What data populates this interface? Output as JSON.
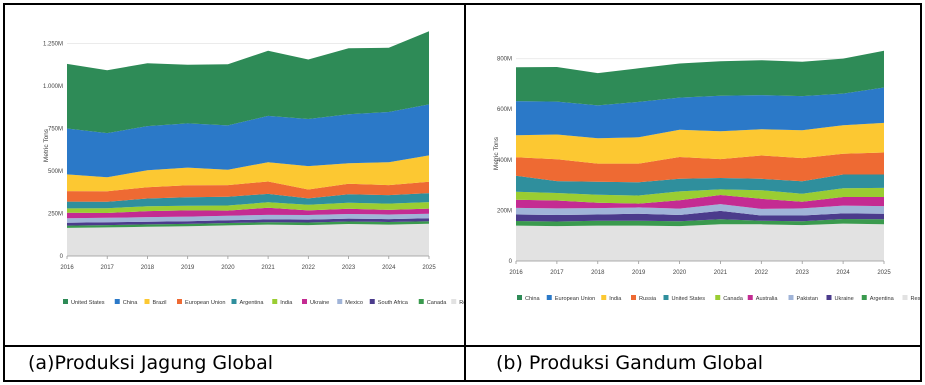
{
  "captions": {
    "a": "(a)Produksi Jagung Global",
    "b": "(b) Produksi Gandum Global"
  },
  "chart_data": [
    {
      "type": "area",
      "stacked": true,
      "title": "",
      "xlabel": "",
      "ylabel": "Metric Tons",
      "x": [
        "2016",
        "2017",
        "2018",
        "2019",
        "2020",
        "2021",
        "2022",
        "2023",
        "2024",
        "2025"
      ],
      "ylim": [
        0,
        1300
      ],
      "yticks": [
        0,
        250,
        500,
        750,
        1000,
        1250
      ],
      "ytick_labels": [
        "0",
        "250M",
        "500M",
        "750M",
        "1.000M",
        "1.250M"
      ],
      "grid": true,
      "legend_position": "bottom",
      "series": [
        {
          "name": "Rest of World",
          "color": "#e2e2e2",
          "values": [
            165,
            168,
            172,
            175,
            180,
            185,
            182,
            188,
            185,
            190
          ]
        },
        {
          "name": "Canada",
          "color": "#3a9a4e",
          "values": [
            14,
            14,
            14,
            14,
            14,
            14,
            15,
            15,
            15,
            15
          ]
        },
        {
          "name": "South Africa",
          "color": "#4b3b8c",
          "values": [
            16,
            16,
            16,
            16,
            16,
            16,
            17,
            17,
            17,
            17
          ]
        },
        {
          "name": "Mexico",
          "color": "#a0b4d8",
          "values": [
            27,
            27,
            27,
            27,
            27,
            27,
            27,
            27,
            27,
            27
          ]
        },
        {
          "name": "Ukraine",
          "color": "#c42b92",
          "values": [
            32,
            28,
            35,
            36,
            30,
            42,
            27,
            31,
            27,
            30
          ]
        },
        {
          "name": "India",
          "color": "#9acd32",
          "values": [
            26,
            28,
            29,
            28,
            30,
            32,
            34,
            35,
            37,
            38
          ]
        },
        {
          "name": "Argentina",
          "color": "#2f8f9d",
          "values": [
            40,
            38,
            45,
            50,
            52,
            49,
            37,
            50,
            50,
            53
          ]
        },
        {
          "name": "European Union",
          "color": "#ee6a33",
          "values": [
            62,
            62,
            67,
            70,
            68,
            73,
            52,
            62,
            59,
            67
          ]
        },
        {
          "name": "Brazil",
          "color": "#fcc832",
          "values": [
            98,
            82,
            100,
            104,
            90,
            114,
            138,
            120,
            135,
            155
          ]
        },
        {
          "name": "China",
          "color": "#2b79c8",
          "values": [
            270,
            260,
            259,
            260,
            261,
            272,
            277,
            289,
            295,
            300
          ]
        },
        {
          "name": "United States",
          "color": "#2e8b57",
          "values": [
            380,
            370,
            370,
            345,
            360,
            383,
            350,
            388,
            378,
            430
          ]
        }
      ],
      "legend": [
        "United States",
        "China",
        "Brazil",
        "European Union",
        "Argentina",
        "India",
        "Ukraine",
        "Mexico",
        "South Africa",
        "Canada",
        "Rest of World"
      ]
    },
    {
      "type": "area",
      "stacked": true,
      "title": "",
      "xlabel": "",
      "ylabel": "Metric Tons",
      "x": [
        "2016",
        "2017",
        "2018",
        "2019",
        "2020",
        "2021",
        "2022",
        "2023",
        "2024",
        "2025"
      ],
      "ylim": [
        0,
        850
      ],
      "yticks": [
        0,
        200,
        400,
        600,
        800
      ],
      "ytick_labels": [
        "0",
        "200M",
        "400M",
        "600M",
        "800M"
      ],
      "grid": true,
      "legend_position": "bottom",
      "series": [
        {
          "name": "Rest of World",
          "color": "#e2e2e2",
          "values": [
            140,
            138,
            140,
            140,
            138,
            145,
            145,
            142,
            148,
            145
          ]
        },
        {
          "name": "Argentina",
          "color": "#3a9a4e",
          "values": [
            18,
            18,
            19,
            19,
            19,
            20,
            14,
            15,
            18,
            20
          ]
        },
        {
          "name": "Ukraine",
          "color": "#4b3b8c",
          "values": [
            26,
            26,
            25,
            28,
            25,
            33,
            21,
            23,
            22,
            22
          ]
        },
        {
          "name": "Pakistan",
          "color": "#a0b4d8",
          "values": [
            26,
            26,
            25,
            25,
            25,
            27,
            26,
            28,
            31,
            30
          ]
        },
        {
          "name": "Australia",
          "color": "#c42b92",
          "values": [
            32,
            31,
            21,
            15,
            33,
            36,
            40,
            26,
            34,
            36
          ]
        },
        {
          "name": "Canada",
          "color": "#9acd32",
          "values": [
            32,
            30,
            32,
            32,
            35,
            22,
            34,
            32,
            35,
            36
          ]
        },
        {
          "name": "United States",
          "color": "#2f8f9d",
          "values": [
            63,
            47,
            51,
            52,
            50,
            45,
            45,
            49,
            54,
            53
          ]
        },
        {
          "name": "Russia",
          "color": "#ee6a33",
          "values": [
            73,
            86,
            72,
            74,
            86,
            75,
            92,
            92,
            82,
            87
          ]
        },
        {
          "name": "India",
          "color": "#fcc832",
          "values": [
            87,
            98,
            100,
            104,
            108,
            110,
            104,
            110,
            113,
            117
          ]
        },
        {
          "name": "European Union",
          "color": "#2b79c8",
          "values": [
            135,
            130,
            130,
            140,
            127,
            140,
            135,
            135,
            125,
            140
          ]
        },
        {
          "name": "China",
          "color": "#2e8b57",
          "values": [
            134,
            137,
            128,
            133,
            135,
            137,
            138,
            136,
            138,
            145
          ]
        }
      ],
      "legend": [
        "China",
        "European Union",
        "India",
        "Russia",
        "United States",
        "Canada",
        "Australia",
        "Pakistan",
        "Ukraine",
        "Argentina",
        "Rest of World"
      ]
    }
  ]
}
